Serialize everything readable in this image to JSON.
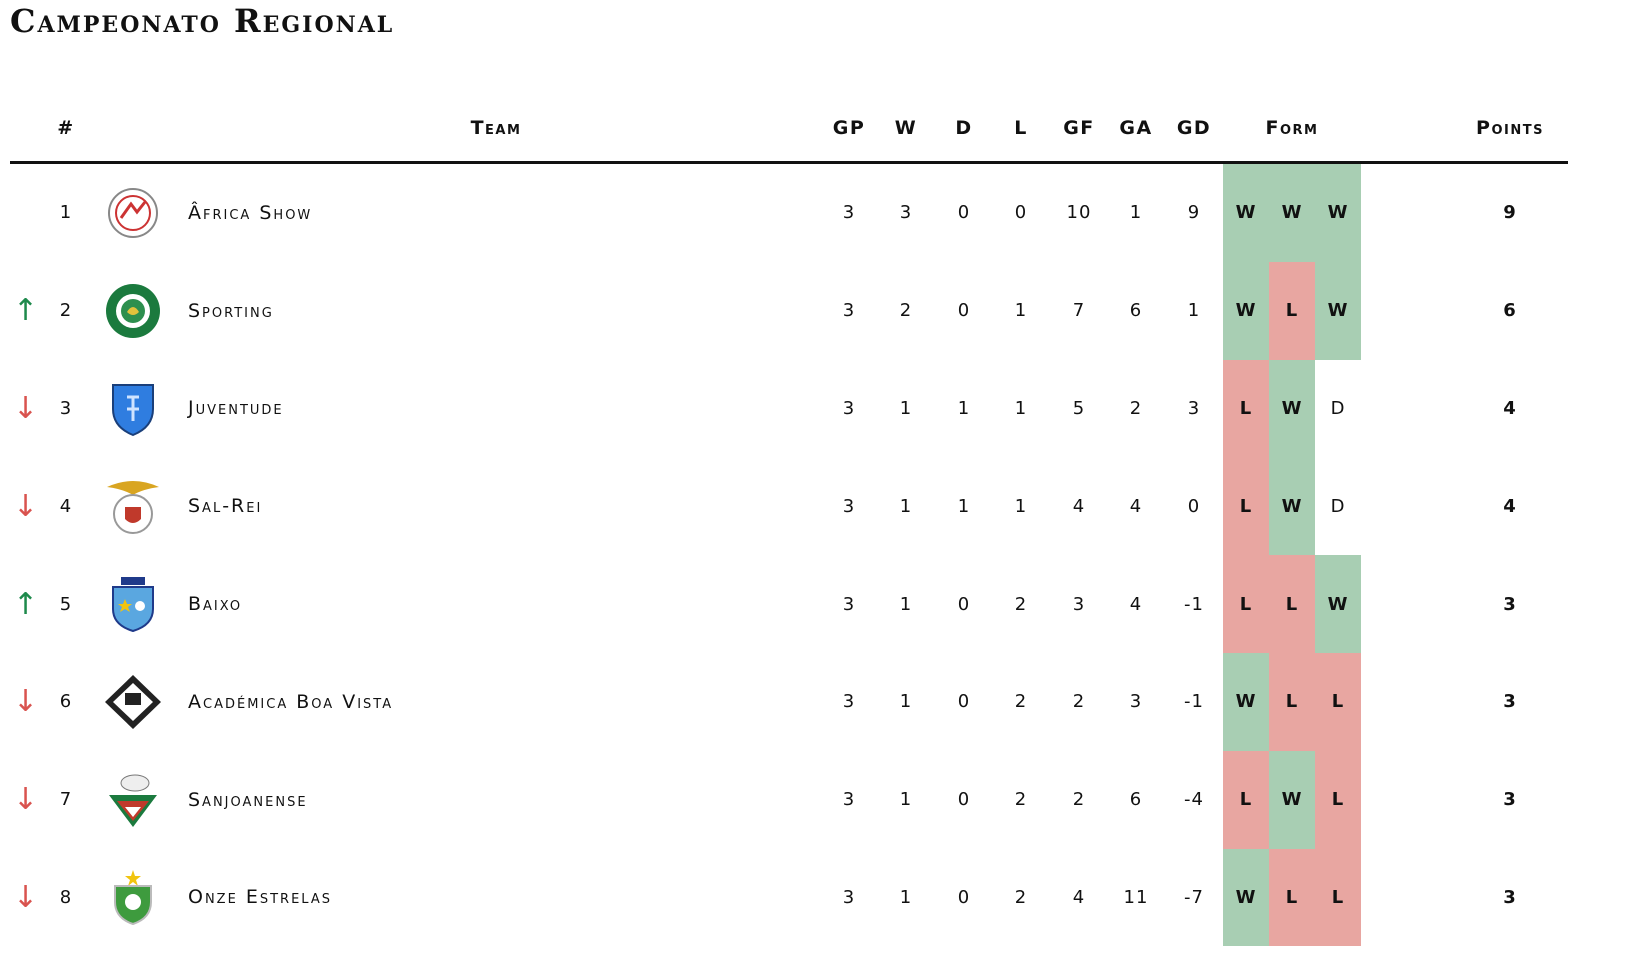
{
  "title": "Campeonato Regional",
  "columns": {
    "rank": "#",
    "team": "Team",
    "gp": "GP",
    "w": "W",
    "d": "D",
    "l": "L",
    "gf": "GF",
    "ga": "GA",
    "gd": "GD",
    "form": "Form",
    "points": "Points"
  },
  "colors": {
    "win": "#a8ceb3",
    "loss": "#e8a6a1",
    "up": "#1e8a4c",
    "down": "#d9534f"
  },
  "rows": [
    {
      "rank": "1",
      "trend": "",
      "team": "Âfrica Show",
      "logo": "africa-show-crest",
      "gp": "3",
      "w": "3",
      "d": "0",
      "l": "0",
      "gf": "10",
      "ga": "1",
      "gd": "9",
      "form": [
        "W",
        "W",
        "W"
      ],
      "points": "9"
    },
    {
      "rank": "2",
      "trend": "↑",
      "team": "Sporting",
      "logo": "sporting-crest",
      "gp": "3",
      "w": "2",
      "d": "0",
      "l": "1",
      "gf": "7",
      "ga": "6",
      "gd": "1",
      "form": [
        "W",
        "L",
        "W"
      ],
      "points": "6"
    },
    {
      "rank": "3",
      "trend": "↓",
      "team": "Juventude",
      "logo": "juventude-crest",
      "gp": "3",
      "w": "1",
      "d": "1",
      "l": "1",
      "gf": "5",
      "ga": "2",
      "gd": "3",
      "form": [
        "L",
        "W",
        "D"
      ],
      "points": "4"
    },
    {
      "rank": "4",
      "trend": "↓",
      "team": "Sal-Rei",
      "logo": "sal-rei-crest",
      "gp": "3",
      "w": "1",
      "d": "1",
      "l": "1",
      "gf": "4",
      "ga": "4",
      "gd": "0",
      "form": [
        "L",
        "W",
        "D"
      ],
      "points": "4"
    },
    {
      "rank": "5",
      "trend": "↑",
      "team": "Baixo",
      "logo": "baixo-crest",
      "gp": "3",
      "w": "1",
      "d": "0",
      "l": "2",
      "gf": "3",
      "ga": "4",
      "gd": "-1",
      "form": [
        "L",
        "L",
        "W"
      ],
      "points": "3"
    },
    {
      "rank": "6",
      "trend": "↓",
      "team": "Académica Boa Vista",
      "logo": "academica-crest",
      "gp": "3",
      "w": "1",
      "d": "0",
      "l": "2",
      "gf": "2",
      "ga": "3",
      "gd": "-1",
      "form": [
        "W",
        "L",
        "L"
      ],
      "points": "3"
    },
    {
      "rank": "7",
      "trend": "↓",
      "team": "Sanjoanense",
      "logo": "sanjoanense-crest",
      "gp": "3",
      "w": "1",
      "d": "0",
      "l": "2",
      "gf": "2",
      "ga": "6",
      "gd": "-4",
      "form": [
        "L",
        "W",
        "L"
      ],
      "points": "3"
    },
    {
      "rank": "8",
      "trend": "↓",
      "team": "Onze Estrelas",
      "logo": "onze-estrelas-crest",
      "gp": "3",
      "w": "1",
      "d": "0",
      "l": "2",
      "gf": "4",
      "ga": "11",
      "gd": "-7",
      "form": [
        "W",
        "L",
        "L"
      ],
      "points": "3"
    }
  ]
}
